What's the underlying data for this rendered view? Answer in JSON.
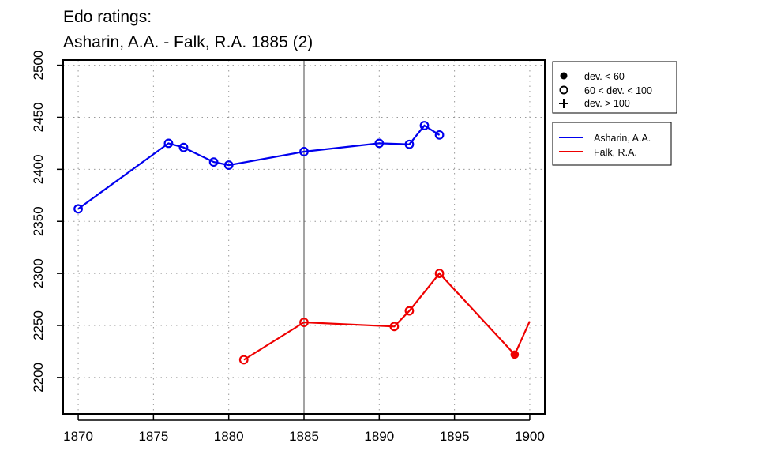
{
  "chart_data": {
    "type": "line",
    "title": "Edo ratings:",
    "subtitle": "Asharin, A.A. - Falk, R.A. 1885 (2)",
    "xlabel": "",
    "ylabel": "",
    "xlim": [
      1869,
      1901
    ],
    "ylim": [
      2165,
      2505
    ],
    "x_ticks": [
      "1870",
      "1875",
      "1880",
      "1885",
      "1890",
      "1895",
      "1900"
    ],
    "y_ticks": [
      "2200",
      "2250",
      "2300",
      "2350",
      "2400",
      "2450",
      "2500"
    ],
    "grid": true,
    "reference_line_x": 1885,
    "legend_placement": "outside-right",
    "deviation_legend": [
      {
        "marker": "filled-circle",
        "label": "dev. < 60"
      },
      {
        "marker": "open-circle",
        "label": "60 < dev. < 100"
      },
      {
        "marker": "plus",
        "label": "dev. > 100"
      }
    ],
    "series": [
      {
        "name": "Asharin, A.A.",
        "color": "#0000ee",
        "points": [
          {
            "x": 1870,
            "y": 2362,
            "marker": "open-circle"
          },
          {
            "x": 1876,
            "y": 2425,
            "marker": "open-circle"
          },
          {
            "x": 1877,
            "y": 2421,
            "marker": "open-circle"
          },
          {
            "x": 1879,
            "y": 2407,
            "marker": "open-circle"
          },
          {
            "x": 1880,
            "y": 2404,
            "marker": "open-circle"
          },
          {
            "x": 1885,
            "y": 2417,
            "marker": "open-circle"
          },
          {
            "x": 1890,
            "y": 2425,
            "marker": "open-circle"
          },
          {
            "x": 1892,
            "y": 2424,
            "marker": "open-circle"
          },
          {
            "x": 1893,
            "y": 2442,
            "marker": "open-circle"
          },
          {
            "x": 1894,
            "y": 2433,
            "marker": "open-circle"
          }
        ]
      },
      {
        "name": "Falk, R.A.",
        "color": "#ee0000",
        "points": [
          {
            "x": 1881,
            "y": 2217,
            "marker": "open-circle"
          },
          {
            "x": 1885,
            "y": 2253,
            "marker": "open-circle"
          },
          {
            "x": 1891,
            "y": 2249,
            "marker": "open-circle"
          },
          {
            "x": 1892,
            "y": 2264,
            "marker": "open-circle"
          },
          {
            "x": 1894,
            "y": 2300,
            "marker": "open-circle"
          },
          {
            "x": 1899,
            "y": 2222,
            "marker": "filled-circle"
          },
          {
            "x": 1900,
            "y": 2254,
            "marker": "none"
          }
        ]
      }
    ]
  }
}
